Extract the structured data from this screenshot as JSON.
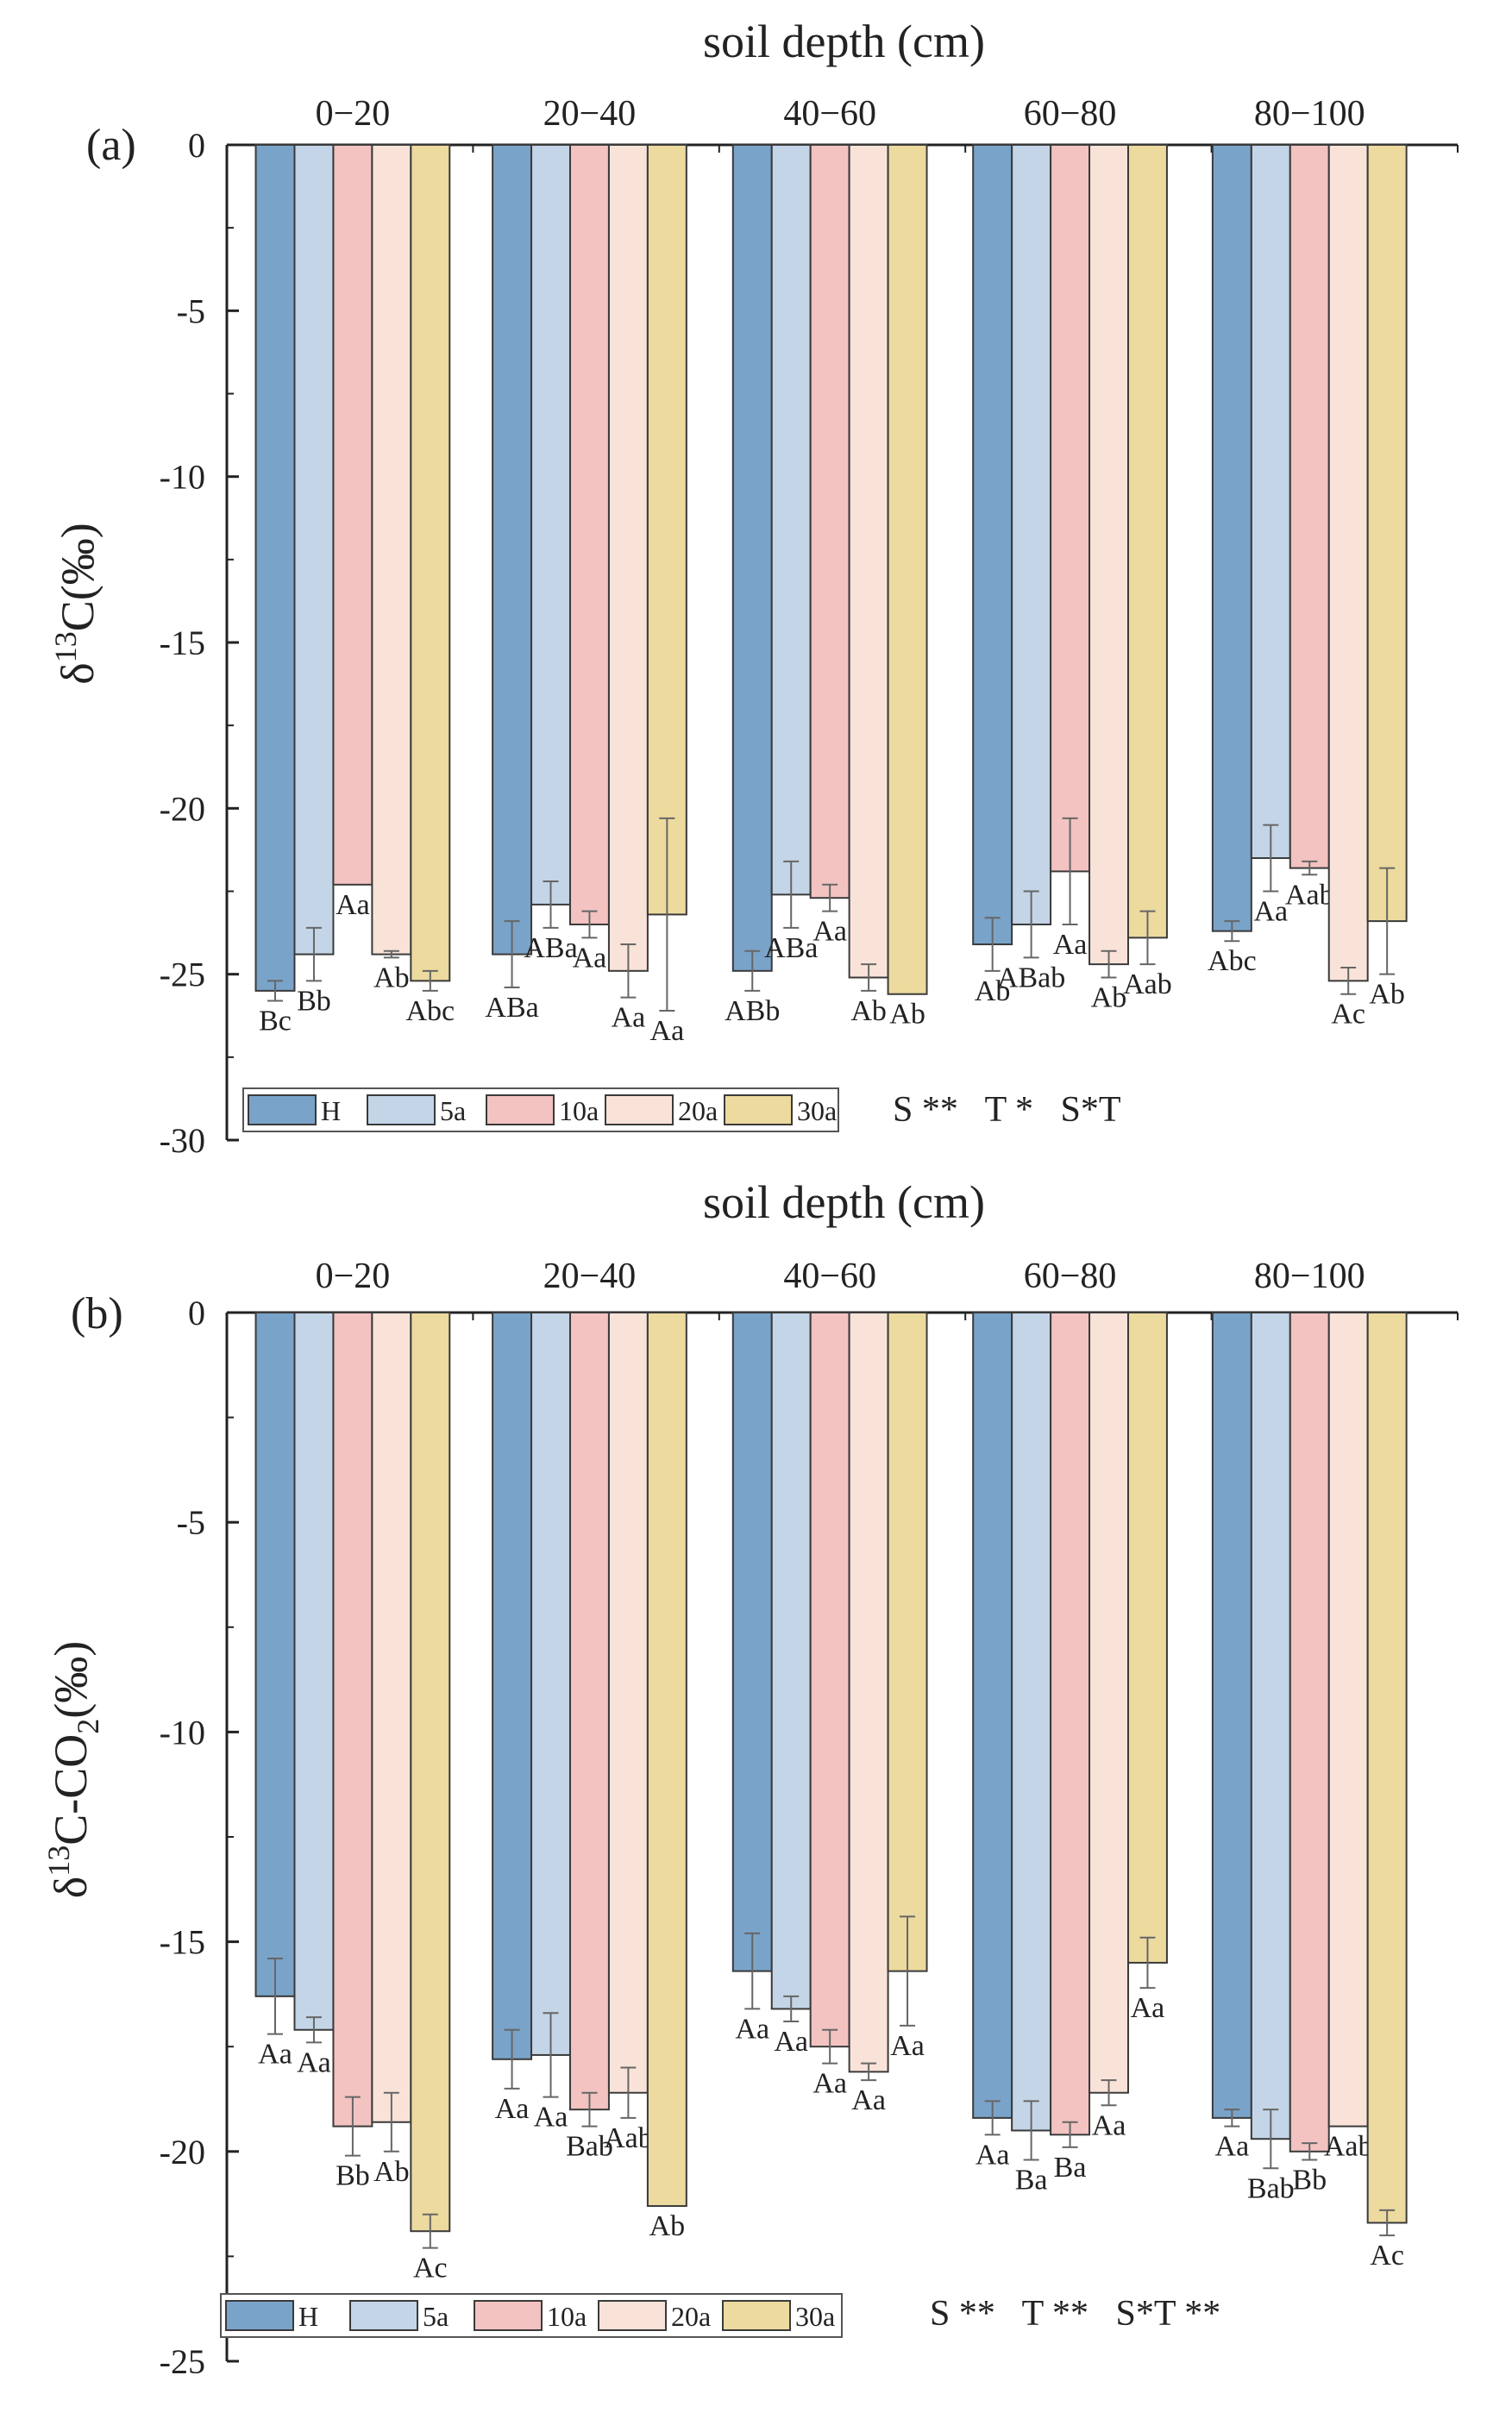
{
  "colors": {
    "H": "#7aa3c9",
    "5a": "#c3d5e7",
    "10a": "#f2c3c1",
    "20a": "#f9e3d9",
    "30a": "#ecda9e",
    "stroke": "#3a3a3a",
    "axis": "#222222"
  },
  "chart_data": [
    {
      "type": "bar",
      "panel_label": "(a)",
      "xlabel": "soil depth (cm)",
      "ylabel_main": "δ",
      "ylabel_sup": "13",
      "ylabel_rest": "C(‰)",
      "ylabel_sub": "",
      "ylabel_tail": "",
      "ylim": [
        -30,
        0
      ],
      "yticks": [
        0,
        -5,
        -10,
        -15,
        -20,
        -25,
        -30
      ],
      "tick_labels": [
        "0",
        "-5",
        "-10",
        "-15",
        "-20",
        "-25",
        "-30"
      ],
      "categories": [
        "0−20",
        "20−40",
        "40−60",
        "60−80",
        "80−100"
      ],
      "series": [
        {
          "name": "H",
          "values": [
            -25.5,
            -24.4,
            -24.9,
            -24.1,
            -23.7
          ],
          "errors": [
            0.3,
            1.0,
            0.6,
            0.8,
            0.3
          ],
          "labels": [
            "Bc",
            "ABa",
            "ABb",
            "Ab",
            "Abc"
          ]
        },
        {
          "name": "5a",
          "values": [
            -24.4,
            -22.9,
            -22.6,
            -23.5,
            -21.5
          ],
          "errors": [
            0.8,
            0.7,
            1.0,
            1.0,
            1.0
          ],
          "labels": [
            "Bb",
            "ABa",
            "ABa",
            "ABab",
            "Aa"
          ]
        },
        {
          "name": "10a",
          "values": [
            -22.3,
            -23.5,
            -22.7,
            -21.9,
            -21.8
          ],
          "errors": [
            0.0,
            0.4,
            0.4,
            1.6,
            0.2
          ],
          "labels": [
            "Aa",
            "Aa",
            "Aa",
            "Aa",
            "Aab"
          ]
        },
        {
          "name": "20a",
          "values": [
            -24.4,
            -24.9,
            -25.1,
            -24.7,
            -25.2
          ],
          "errors": [
            0.1,
            0.8,
            0.4,
            0.4,
            0.4
          ],
          "labels": [
            "Ab",
            "Aa",
            "Ab",
            "Ab",
            "Ac"
          ]
        },
        {
          "name": "30a",
          "values": [
            -25.2,
            -23.2,
            -25.6,
            -23.9,
            -23.4
          ],
          "errors": [
            0.3,
            2.9,
            0.0,
            0.8,
            1.6
          ],
          "labels": [
            "Abc",
            "Aa",
            "Ab",
            "Aab",
            "Ab"
          ]
        }
      ],
      "legend": [
        "H",
        "5a",
        "10a",
        "20a",
        "30a"
      ],
      "stats": "S **   T *   S*T"
    },
    {
      "type": "bar",
      "panel_label": "(b)",
      "xlabel": "soil depth (cm)",
      "ylabel_main": "δ",
      "ylabel_sup": "13",
      "ylabel_rest": "C-CO",
      "ylabel_sub": "2",
      "ylabel_tail": "(‰)",
      "ylim": [
        -25,
        0
      ],
      "yticks": [
        0,
        -5,
        -10,
        -15,
        -20,
        -25
      ],
      "tick_labels": [
        "0",
        "-5",
        "-10",
        "-15",
        "-20",
        "-25"
      ],
      "categories": [
        "0−20",
        "20−40",
        "40−60",
        "60−80",
        "80−100"
      ],
      "series": [
        {
          "name": "H",
          "values": [
            -16.3,
            -17.8,
            -15.7,
            -19.2,
            -19.2
          ],
          "errors": [
            0.9,
            0.7,
            0.9,
            0.4,
            0.2
          ],
          "labels": [
            "Aa",
            "Aa",
            "Aa",
            "Aa",
            "Aa"
          ]
        },
        {
          "name": "5a",
          "values": [
            -17.1,
            -17.7,
            -16.6,
            -19.5,
            -19.7
          ],
          "errors": [
            0.3,
            1.0,
            0.3,
            0.7,
            0.7
          ],
          "labels": [
            "Aa",
            "Aa",
            "Aa",
            "Ba",
            "Bab"
          ]
        },
        {
          "name": "10a",
          "values": [
            -19.4,
            -19.0,
            -17.5,
            -19.6,
            -20.0
          ],
          "errors": [
            0.7,
            0.4,
            0.4,
            0.3,
            0.2
          ],
          "labels": [
            "Bb",
            "Bab",
            "Aa",
            "Ba",
            "Bb"
          ]
        },
        {
          "name": "20a",
          "values": [
            -19.3,
            -18.6,
            -18.1,
            -18.6,
            -19.4
          ],
          "errors": [
            0.7,
            0.6,
            0.2,
            0.3,
            0.0
          ],
          "labels": [
            "Ab",
            "Aab",
            "Aa",
            "Aa",
            "Aab"
          ]
        },
        {
          "name": "30a",
          "values": [
            -21.9,
            -21.3,
            -15.7,
            -15.5,
            -21.7
          ],
          "errors": [
            0.4,
            0.0,
            1.3,
            0.6,
            0.3
          ],
          "labels": [
            "Ac",
            "Ab",
            "Aa",
            "Aa",
            "Ac"
          ]
        }
      ],
      "legend": [
        "H",
        "5a",
        "10a",
        "20a",
        "30a"
      ],
      "stats": "S **   T **   S*T **"
    }
  ]
}
